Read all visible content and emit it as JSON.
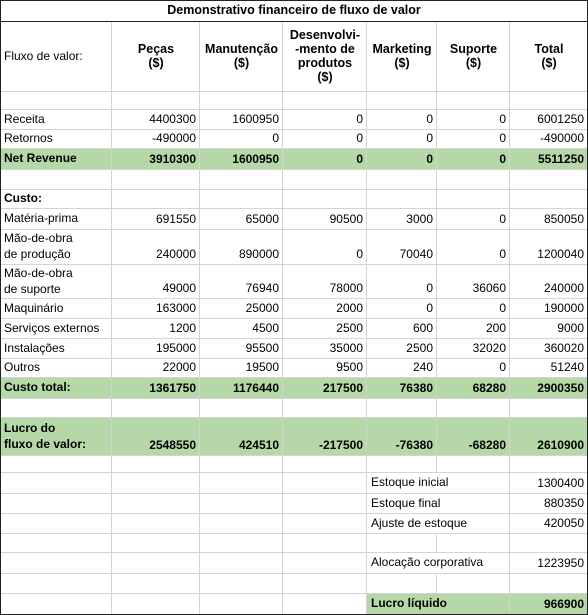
{
  "title": "Demonstrativo financeiro de fluxo de valor",
  "header": [
    "Fluxo de valor:",
    "Peças\n($)",
    "Manutenção\n($)",
    "Desenvolvi-\n-mento de\nprodutos\n($)",
    "Marketing\n($)",
    "Suporte\n($)",
    "Total\n($)"
  ],
  "rows": [
    {
      "label": "Receita",
      "values": [
        4400300,
        1600950,
        0,
        0,
        0,
        6001250
      ]
    },
    {
      "label": "Retornos",
      "values": [
        -490000,
        0,
        0,
        0,
        0,
        -490000
      ]
    },
    {
      "label": "Net Revenue",
      "values": [
        3910300,
        1600950,
        0,
        0,
        0,
        5511250
      ]
    },
    {
      "label": "Custo:"
    },
    {
      "label": "Matéria-prima",
      "values": [
        691550,
        65000,
        90500,
        3000,
        0,
        850050
      ]
    },
    {
      "label": "Mão-de-obra\nde produção",
      "values": [
        240000,
        890000,
        0,
        70040,
        0,
        1200040
      ]
    },
    {
      "label": "Mão-de-obra\nde suporte",
      "values": [
        49000,
        76940,
        78000,
        0,
        36060,
        240000
      ]
    },
    {
      "label": "Maquinário",
      "values": [
        163000,
        25000,
        2000,
        0,
        0,
        190000
      ]
    },
    {
      "label": "Serviços externos",
      "values": [
        1200,
        4500,
        2500,
        600,
        200,
        9000
      ]
    },
    {
      "label": "Instalações",
      "values": [
        195000,
        95500,
        35000,
        2500,
        32020,
        360020
      ]
    },
    {
      "label": "Outros",
      "values": [
        22000,
        19500,
        9500,
        240,
        0,
        51240
      ]
    },
    {
      "label": "Custo total:",
      "values": [
        1361750,
        1176440,
        217500,
        76380,
        68280,
        2900350
      ]
    },
    {
      "label": "Lucro do\nfluxo de valor:",
      "values": [
        2548550,
        424510,
        -217500,
        -76380,
        -68280,
        2610900
      ]
    }
  ],
  "summary": [
    {
      "label": "Estoque inicial",
      "value": 1300400
    },
    {
      "label": "Estoque final",
      "value": 880350
    },
    {
      "label": "Ajuste de estoque",
      "value": 420050
    },
    {
      "label": "Alocação corporativa",
      "value": 1223950
    },
    {
      "label": "Lucro líquido",
      "value": 966900
    }
  ]
}
